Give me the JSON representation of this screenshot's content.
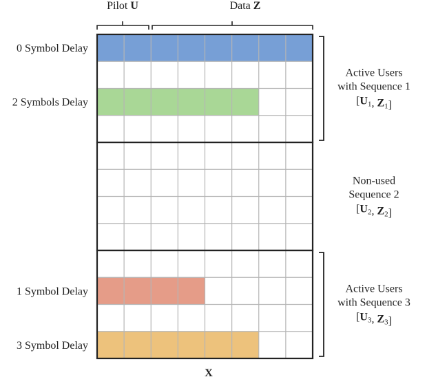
{
  "header": {
    "pilot_label": "Pilot",
    "pilot_symbol": "U",
    "data_label": "Data",
    "data_symbol": "Z"
  },
  "footer": {
    "x_label": "X"
  },
  "grid": {
    "columns": 8,
    "rows": 12,
    "group_rows": 4,
    "pilot_columns": 2
  },
  "colors": {
    "blue": "#779fd6",
    "green": "#a9d796",
    "red": "#e59c88",
    "orange": "#edc27c",
    "grid_line": "#b5b5b5",
    "border": "#222222"
  },
  "row_labels": [
    {
      "text": "0 Symbol Delay",
      "row": 0
    },
    {
      "text": "2 Symbols Delay",
      "row": 2
    },
    {
      "text": "1 Symbol Delay",
      "row": 9
    },
    {
      "text": "3 Symbol Delay",
      "row": 11
    }
  ],
  "bars": [
    {
      "row": 0,
      "start_col": 0,
      "length": 8,
      "color": "#779fd6"
    },
    {
      "row": 2,
      "start_col": 0,
      "length": 6,
      "color": "#a9d796"
    },
    {
      "row": 9,
      "start_col": 0,
      "length": 4,
      "color": "#e59c88"
    },
    {
      "row": 11,
      "start_col": 0,
      "length": 6,
      "color": "#edc27c"
    }
  ],
  "groups": [
    {
      "lines": [
        "Active Users",
        "with Sequence 1"
      ],
      "matrix": [
        "U",
        "1",
        "Z",
        "1"
      ],
      "bracket": true
    },
    {
      "lines": [
        "Non-used",
        "Sequence 2"
      ],
      "matrix": [
        "U",
        "2",
        "Z",
        "2"
      ],
      "bracket": false
    },
    {
      "lines": [
        "Active Users",
        "with  Sequence 3"
      ],
      "matrix": [
        "U",
        "3",
        "Z",
        "3"
      ],
      "bracket": true
    }
  ]
}
